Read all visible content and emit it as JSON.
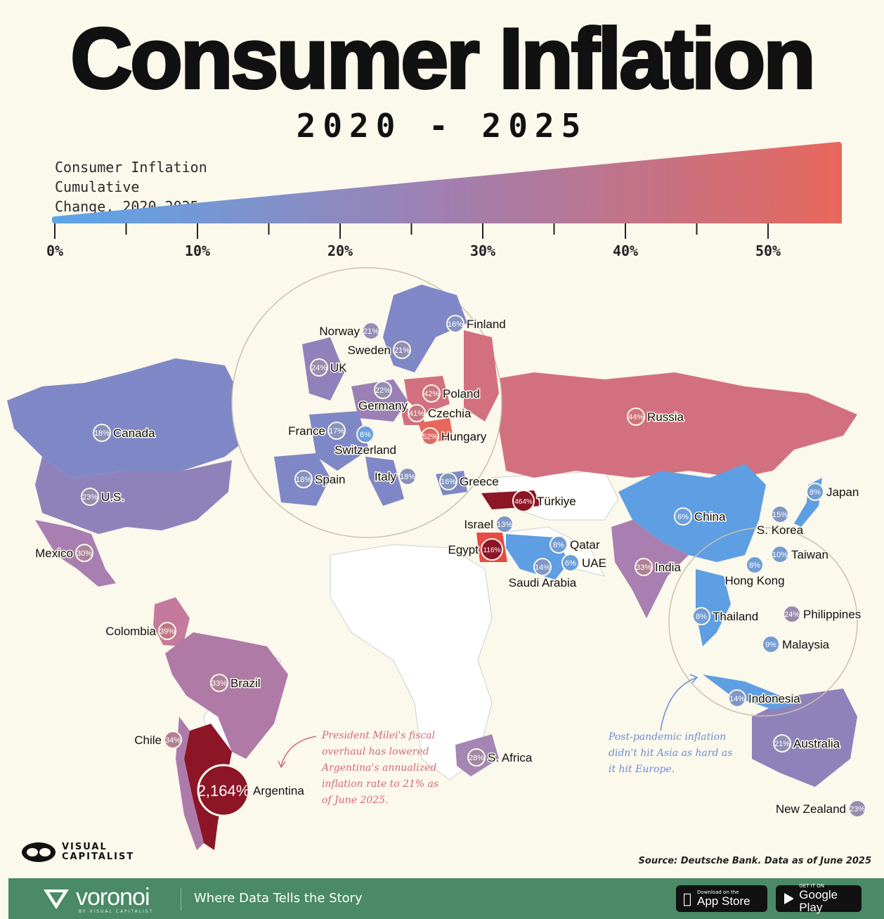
{
  "header": {
    "title": "Consumer Inflation",
    "subtitle": "2020 - 2025"
  },
  "legend": {
    "title_line1": "Consumer Inflation Cumulative",
    "title_line2": "Change, 2020-2025",
    "ticks": [
      "0%",
      "10%",
      "20%",
      "30%",
      "40%",
      "50%"
    ],
    "color_low": "#5ba6ea",
    "color_high": "#e8675c"
  },
  "countries": [
    {
      "name": "Canada",
      "value": "18%"
    },
    {
      "name": "U.S.",
      "value": "23%"
    },
    {
      "name": "Mexico",
      "value": "30%"
    },
    {
      "name": "Colombia",
      "value": "39%"
    },
    {
      "name": "Brazil",
      "value": "33%"
    },
    {
      "name": "Chile",
      "value": "34%"
    },
    {
      "name": "Argentina",
      "value": "2,164%"
    },
    {
      "name": "Norway",
      "value": "21%"
    },
    {
      "name": "Sweden",
      "value": "21%"
    },
    {
      "name": "Finland",
      "value": "16%"
    },
    {
      "name": "UK",
      "value": "24%"
    },
    {
      "name": "Germany",
      "value": "22%"
    },
    {
      "name": "Poland",
      "value": "42%"
    },
    {
      "name": "Czechia",
      "value": "41%"
    },
    {
      "name": "France",
      "value": "17%"
    },
    {
      "name": "Switzerland",
      "value": "6%"
    },
    {
      "name": "Hungary",
      "value": "52%"
    },
    {
      "name": "Spain",
      "value": "18%"
    },
    {
      "name": "Italy",
      "value": "18%"
    },
    {
      "name": "Greece",
      "value": "16%"
    },
    {
      "name": "Türkiye",
      "value": "464%"
    },
    {
      "name": "Israel",
      "value": "13%"
    },
    {
      "name": "Egypt",
      "value": "116%"
    },
    {
      "name": "Saudi Arabia",
      "value": "14%"
    },
    {
      "name": "Qatar",
      "value": "8%"
    },
    {
      "name": "UAE",
      "value": "6%"
    },
    {
      "name": "S. Africa",
      "value": "28%"
    },
    {
      "name": "Russia",
      "value": "44%"
    },
    {
      "name": "China",
      "value": "6%"
    },
    {
      "name": "India",
      "value": "33%"
    },
    {
      "name": "Japan",
      "value": "8%"
    },
    {
      "name": "S. Korea",
      "value": "15%"
    },
    {
      "name": "Taiwan",
      "value": "10%"
    },
    {
      "name": "Hong Kong",
      "value": "8%"
    },
    {
      "name": "Thailand",
      "value": "8%"
    },
    {
      "name": "Philippines",
      "value": "24%"
    },
    {
      "name": "Malaysia",
      "value": "9%"
    },
    {
      "name": "Indonesia",
      "value": "14%"
    },
    {
      "name": "Australia",
      "value": "21%"
    },
    {
      "name": "New Zealand",
      "value": "23%"
    }
  ],
  "annotations": {
    "argentina_note": "President Milei's fiscal overhaul has lowered Argentina's annualized inflation rate to 21% as of June 2025.",
    "asia_note": "Post-pandemic inflation didn't hit Asia as hard as it hit Europe."
  },
  "source": "Source: Deutsche Bank. Data as of June 2025",
  "publisher_logo": "VISUAL CAPITALIST",
  "footer": {
    "brand": "voronoi",
    "brand_by": "BY VISUAL CAPITALIST",
    "tagline": "Where Data Tells the Story",
    "appstore_small": "Download on the",
    "appstore_big": "App Store",
    "gplay_small": "GET IT ON",
    "gplay_big": "Google Play"
  }
}
